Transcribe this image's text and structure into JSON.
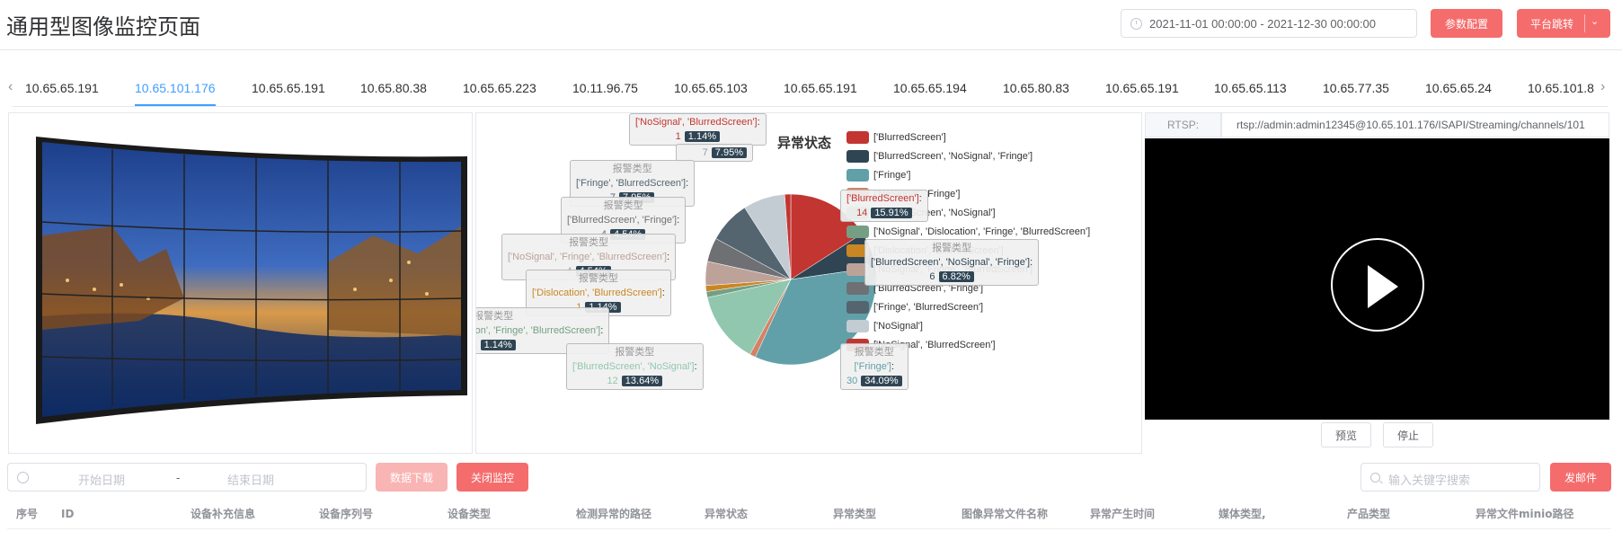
{
  "header": {
    "title": "通用型图像监控页面",
    "date_range": "2021-11-01 00:00:00  -  2021-12-30 00:00:00",
    "config_button": "参数配置",
    "jump_button": "平台跳转"
  },
  "tabs": [
    "10.65.65.191",
    "10.65.101.176",
    "10.65.65.191",
    "10.65.80.38",
    "10.65.65.223",
    "10.11.96.75",
    "10.65.65.103",
    "10.65.65.191",
    "10.65.65.194",
    "10.65.80.83",
    "10.65.65.191",
    "10.65.65.113",
    "10.65.77.35",
    "10.65.65.24",
    "10.65.101.8"
  ],
  "active_tab_index": 1,
  "chart_data": {
    "type": "pie",
    "title": "异常状态",
    "legend_position": "right",
    "series": [
      {
        "name": "['BlurredScreen']",
        "value": 14,
        "percent": "15.91%",
        "color": "#c23531"
      },
      {
        "name": "['BlurredScreen', 'NoSignal', 'Fringe']",
        "value": 6,
        "percent": "6.82%",
        "color": "#2f4554"
      },
      {
        "name": "['Fringe']",
        "value": 30,
        "percent": "34.09%",
        "color": "#61a0a8"
      },
      {
        "name": "['NoSignal', 'Fringe']",
        "value": 1,
        "percent": "1.14%",
        "color": "#d48265"
      },
      {
        "name": "['BlurredScreen', 'NoSignal']",
        "value": 12,
        "percent": "13.64%",
        "color": "#91c7ae"
      },
      {
        "name": "['NoSignal', 'Dislocation', 'Fringe', 'BlurredScreen']",
        "value": 1,
        "percent": "1.14%",
        "color": "#749f83"
      },
      {
        "name": "['Dislocation', 'BlurredScreen']",
        "value": 1,
        "percent": "1.14%",
        "color": "#ca8622"
      },
      {
        "name": "['NoSignal', 'Fringe', 'BlurredScreen']",
        "value": 4,
        "percent": "4.54%",
        "color": "#bda29a"
      },
      {
        "name": "['BlurredScreen', 'Fringe']",
        "value": 4,
        "percent": "4.54%",
        "color": "#6e7074"
      },
      {
        "name": "['Fringe', 'BlurredScreen']",
        "value": 7,
        "percent": "7.95%",
        "color": "#546570"
      },
      {
        "name": "['NoSignal']",
        "value": 7,
        "percent": "7.95%",
        "color": "#c4ccd3"
      },
      {
        "name": "['NoSignal', 'BlurredScreen']",
        "value": 1,
        "percent": "1.14%",
        "color": "#c23531"
      }
    ],
    "tooltip_header": "报警类型",
    "legend_overlap_text": "['NoSignal', 'BlurredScreen']"
  },
  "rtsp": {
    "label": "RTSP:",
    "url": "rtsp://admin:admin12345@10.65.101.176/ISAPI/Streaming/channels/101"
  },
  "player": {
    "preview_button": "预览",
    "stop_button": "停止"
  },
  "filters": {
    "start_placeholder": "开始日期",
    "separator": "-",
    "end_placeholder": "结束日期",
    "download_button": "数据下载",
    "close_button": "关闭监控",
    "search_placeholder": "输入关键字搜索",
    "mail_button": "发邮件"
  },
  "table": {
    "columns": [
      "序号",
      "ID",
      "设备补充信息",
      "设备序列号",
      "设备类型",
      "检测异常的路径",
      "异常状态",
      "异常类型",
      "图像异常文件名称",
      "异常产生时间",
      "媒体类型,",
      "产品类型",
      "异常文件minio路径"
    ]
  }
}
